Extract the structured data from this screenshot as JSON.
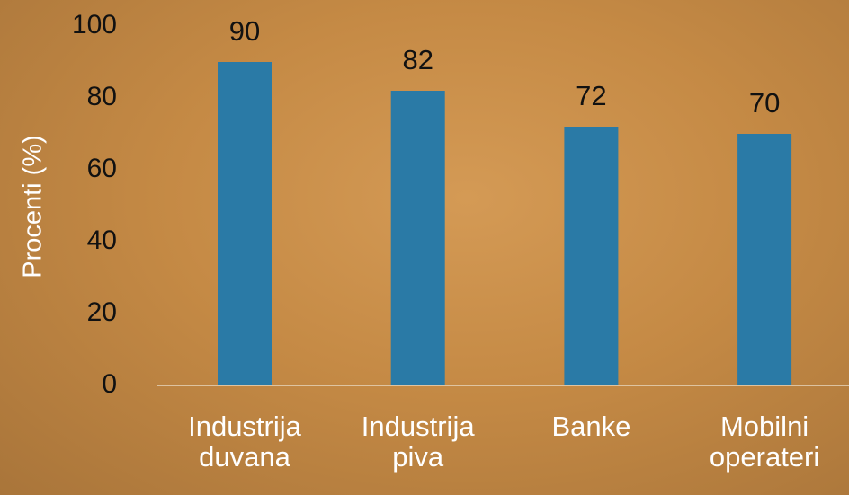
{
  "chart_data": {
    "type": "bar",
    "y_label": "Procenti (%)",
    "categories": [
      "Industrija duvana",
      "Industrija piva",
      "Banke",
      "Mobilni operateri"
    ],
    "values": [
      90,
      82,
      72,
      70
    ],
    "color": "#2a7aa6",
    "ylim": [
      0,
      100
    ],
    "yticks": [
      0,
      20,
      40,
      60,
      80,
      100
    ],
    "grid": false
  }
}
